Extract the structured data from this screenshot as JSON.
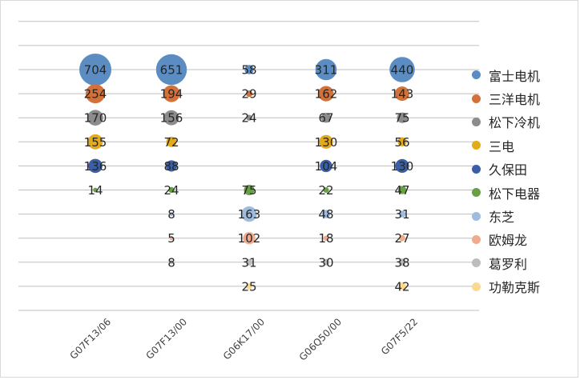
{
  "chart_data": {
    "type": "bubble-table",
    "categories": [
      "G07F13/06",
      "G07F13/00",
      "G06K17/00",
      "G06Q50/00",
      "G07F5/22"
    ],
    "series": [
      {
        "name": "富士电机",
        "color": "#5b8dc3",
        "values": [
          704,
          651,
          58,
          311,
          440
        ]
      },
      {
        "name": "三洋电机",
        "color": "#d2713a",
        "values": [
          254,
          194,
          29,
          162,
          143
        ]
      },
      {
        "name": "松下冷机",
        "color": "#8c8c8c",
        "values": [
          170,
          156,
          24,
          67,
          75
        ]
      },
      {
        "name": "三电",
        "color": "#e3aa1a",
        "values": [
          155,
          72,
          null,
          130,
          56
        ]
      },
      {
        "name": "久保田",
        "color": "#3a5fa6",
        "values": [
          136,
          88,
          null,
          104,
          130
        ]
      },
      {
        "name": "松下电器",
        "color": "#67a144",
        "values": [
          14,
          24,
          75,
          22,
          47
        ]
      },
      {
        "name": "东芝",
        "color": "#9ebbe0",
        "values": [
          null,
          8,
          163,
          48,
          31
        ]
      },
      {
        "name": "欧姆龙",
        "color": "#eeab8e",
        "values": [
          null,
          5,
          102,
          18,
          27
        ]
      },
      {
        "name": "葛罗利",
        "color": "#bdbdbd",
        "values": [
          null,
          8,
          31,
          30,
          38
        ]
      },
      {
        "name": "功勒克斯",
        "color": "#fbd98d",
        "values": [
          null,
          null,
          25,
          null,
          42
        ]
      }
    ],
    "legend": "right",
    "grid": true
  }
}
